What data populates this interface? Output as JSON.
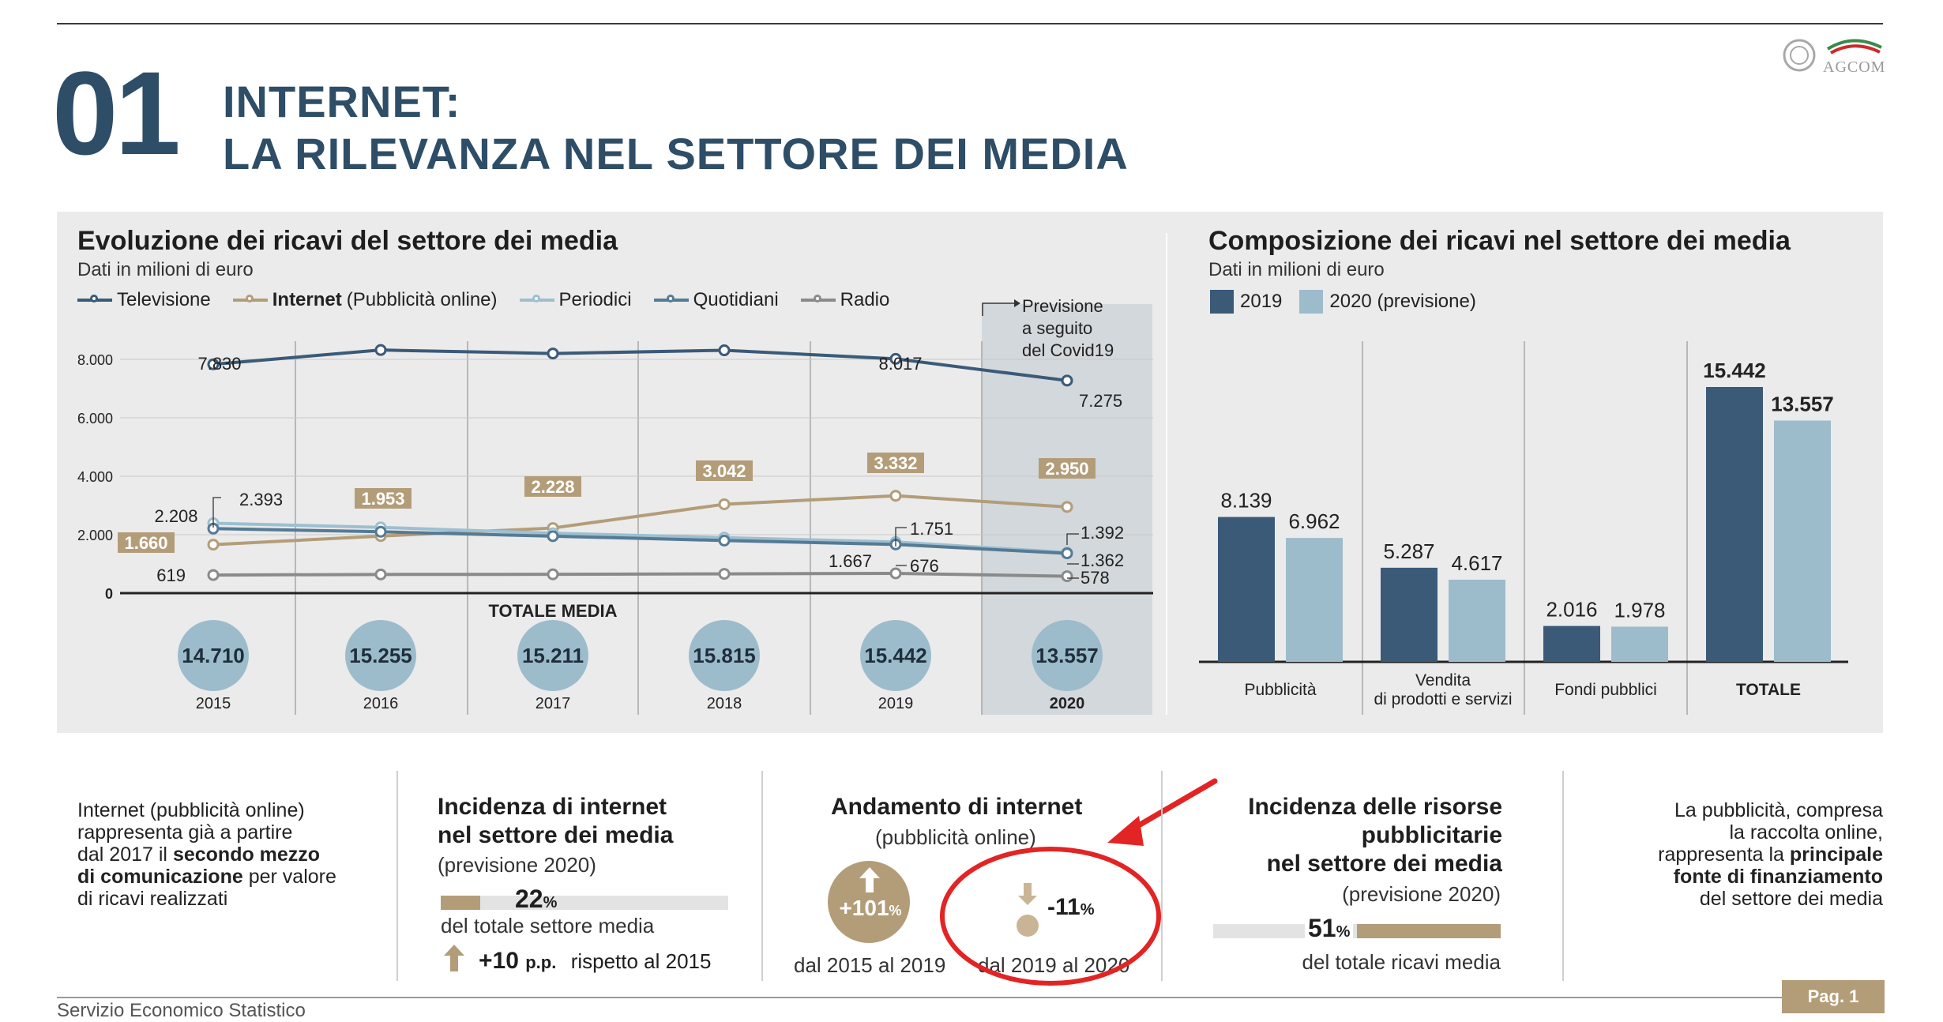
{
  "header": {
    "number": "01",
    "title_line1": "INTERNET:",
    "title_line2": "LA RILEVANZA NEL SETTORE DEI MEDIA",
    "logo_text": "AGCOM"
  },
  "left_chart": {
    "title": "Evoluzione dei ricavi del settore dei media",
    "subtitle": "Dati in milioni di euro",
    "legend": [
      {
        "name": "Televisione",
        "bold": "",
        "color": "#3a5a78"
      },
      {
        "name": "(Pubblicità online)",
        "bold": "Internet",
        "color": "#b39d79"
      },
      {
        "name": "Periodici",
        "bold": "",
        "color": "#9dbfd0"
      },
      {
        "name": "Quotidiani",
        "bold": "",
        "color": "#557a95"
      },
      {
        "name": "Radio",
        "bold": "",
        "color": "#8a8a8a"
      }
    ],
    "forecast_note": [
      "Previsione",
      "a seguito",
      "del Covid19"
    ],
    "totale_label": "TOTALE MEDIA"
  },
  "chart_data": [
    {
      "type": "line",
      "title": "Evoluzione dei ricavi del settore dei media",
      "subtitle": "Dati in milioni di euro",
      "x": [
        "2015",
        "2016",
        "2017",
        "2018",
        "2019",
        "2020"
      ],
      "ylim": [
        0,
        9000
      ],
      "yticks": [
        "0",
        "2.000",
        "4.000",
        "6.000",
        "8.000"
      ],
      "ytick_values": [
        0,
        2000,
        4000,
        6000,
        8000
      ],
      "series": [
        {
          "name": "Televisione",
          "color": "#3a5a78",
          "values": [
            7830,
            8320,
            8200,
            8310,
            8017,
            7275
          ]
        },
        {
          "name": "Internet (Pubblicità online)",
          "color": "#b39d79",
          "values": [
            1660,
            1953,
            2228,
            3042,
            3332,
            2950
          ]
        },
        {
          "name": "Periodici",
          "color": "#9dbfd0",
          "values": [
            2393,
            2250,
            2050,
            1900,
            1751,
            1392
          ]
        },
        {
          "name": "Quotidiani",
          "color": "#557a95",
          "values": [
            2208,
            2100,
            1950,
            1800,
            1667,
            1362
          ]
        },
        {
          "name": "Radio",
          "color": "#8a8a8a",
          "values": [
            619,
            640,
            645,
            660,
            676,
            578
          ]
        }
      ],
      "labels": {
        "tv": [
          "7.830",
          "8.017",
          "7.275"
        ],
        "internet": [
          "1.660",
          "1.953",
          "2.228",
          "3.042",
          "3.332",
          "2.950"
        ],
        "periodici": [
          "2.393",
          "1.751",
          "1.392"
        ],
        "quotidiani": [
          "2.208",
          "1.667",
          "1.362"
        ],
        "radio": [
          "619",
          "676",
          "578"
        ]
      },
      "totals": [
        "14.710",
        "15.255",
        "15.211",
        "15.815",
        "15.442",
        "13.557"
      ],
      "total_values": [
        14710,
        15255,
        15211,
        15815,
        15442,
        13557
      ]
    },
    {
      "type": "bar",
      "title": "Composizione dei ricavi nel settore dei media",
      "subtitle": "Dati in milioni di euro",
      "categories": [
        "Pubblicità",
        "Vendita di prodotti e servizi",
        "Fondi pubblici",
        "TOTALE"
      ],
      "series": [
        {
          "name": "2019",
          "color": "#3a5a78",
          "values": [
            8139,
            5287,
            2016,
            15442
          ],
          "labels": [
            "8.139",
            "5.287",
            "2.016",
            "15.442"
          ]
        },
        {
          "name": "2020 (previsione)",
          "color": "#9dbccb",
          "values": [
            6962,
            4617,
            1978,
            13557
          ],
          "labels": [
            "6.962",
            "4.617",
            "1.978",
            "13.557"
          ]
        }
      ]
    }
  ],
  "right_chart": {
    "title": "Composizione dei ricavi nel settore dei media",
    "subtitle": "Dati in milioni di euro",
    "legend_2019": "2019",
    "legend_2020": "2020 (previsione)",
    "cat_vendita_1": "Vendita",
    "cat_vendita_2": "di prodotti e servizi"
  },
  "bottom": {
    "intro_lines": [
      "Internet (pubblicità online)",
      "rappresenta già a partire",
      "dal 2017 il"
    ],
    "intro_bold1": "secondo mezzo",
    "intro_bold2": "di comunicazione",
    "intro_rest1": "per valore",
    "intro_rest2": "di ricavi realizzati",
    "incidenza_title1": "Incidenza di internet",
    "incidenza_title2": "nel settore dei media",
    "incidenza_sub": "(previsione 2020)",
    "incidenza_pct": "22",
    "incidenza_pct_sign": "%",
    "incidenza_value": 22,
    "incidenza_desc": "del totale settore media",
    "incidenza_pp": "+10",
    "incidenza_pp_unit": "p.p.",
    "incidenza_pp_desc": "rispetto al 2015",
    "andamento_title": "Andamento di internet",
    "andamento_sub": "(pubblicità online)",
    "andamento_up": "+101",
    "andamento_up_sign": "%",
    "andamento_up_label": "dal 2015 al 2019",
    "andamento_down": "-11",
    "andamento_down_sign": "%",
    "andamento_down_label": "dal 2019 al 2020",
    "risorse_title1": "Incidenza delle risorse",
    "risorse_title2": "pubblicitarie",
    "risorse_title3": "nel settore dei media",
    "risorse_sub": "(previsione 2020)",
    "risorse_pct": "51",
    "risorse_pct_sign": "%",
    "risorse_value": 51,
    "risorse_desc": "del totale ricavi media",
    "right_lines": [
      "La pubblicità, compresa",
      "la raccolta online,",
      "rappresenta la"
    ],
    "right_bold1": "principale",
    "right_bold2": "fonte di finanziamento",
    "right_rest": "del settore dei media"
  },
  "footer": {
    "left": "Servizio Economico Statistico",
    "page": "Pag. 1"
  }
}
